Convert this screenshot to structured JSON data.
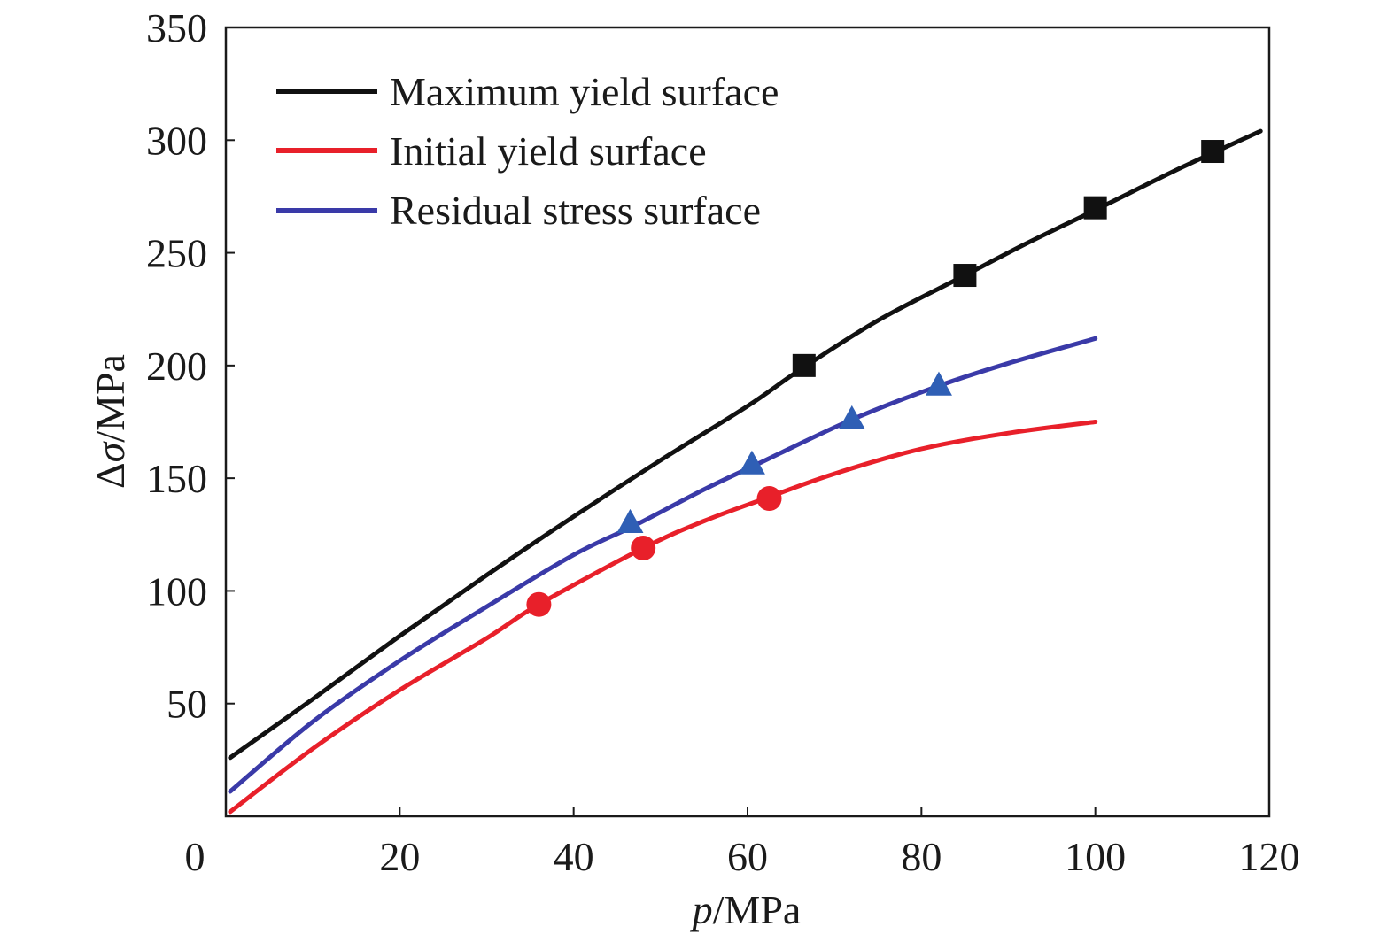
{
  "chart_data": {
    "type": "line",
    "title": "",
    "xlabel_italic": "p",
    "xlabel_rest": "/MPa",
    "ylabel_prefix": "Δ",
    "ylabel_italic": "σ",
    "ylabel_rest": "/MPa",
    "xlim": [
      0,
      120
    ],
    "ylim": [
      0,
      350
    ],
    "xticks": [
      0,
      20,
      40,
      60,
      80,
      100,
      120
    ],
    "yticks": [
      50,
      100,
      150,
      200,
      250,
      300,
      350
    ],
    "x_tick_labels": [
      "0",
      "20",
      "40",
      "60",
      "80",
      "100",
      "120"
    ],
    "y_tick_labels": [
      "50",
      "100",
      "150",
      "200",
      "250",
      "300",
      "350"
    ],
    "grid": false,
    "legend_position": "top-left",
    "series": [
      {
        "name": "Maximum yield surface",
        "color": "#111111",
        "marker": "square",
        "curve": [
          [
            0.5,
            26
          ],
          [
            10,
            52
          ],
          [
            20,
            80
          ],
          [
            30,
            107
          ],
          [
            40,
            133
          ],
          [
            50,
            158
          ],
          [
            60,
            182
          ],
          [
            66,
            198
          ],
          [
            75,
            220
          ],
          [
            85,
            240
          ],
          [
            92,
            254
          ],
          [
            100,
            269
          ],
          [
            110,
            288
          ],
          [
            119,
            304
          ]
        ],
        "markers": [
          [
            66.5,
            200
          ],
          [
            85,
            240
          ],
          [
            100,
            270
          ],
          [
            113.5,
            295
          ]
        ]
      },
      {
        "name": "Initial yield surface",
        "color": "#e8202a",
        "marker": "circle",
        "curve": [
          [
            0.5,
            2
          ],
          [
            10,
            30
          ],
          [
            20,
            56
          ],
          [
            30,
            79
          ],
          [
            36,
            94
          ],
          [
            48,
            119
          ],
          [
            55,
            131
          ],
          [
            62,
            141
          ],
          [
            70,
            152
          ],
          [
            80,
            163
          ],
          [
            90,
            170
          ],
          [
            100,
            175
          ]
        ],
        "markers": [
          [
            36,
            94
          ],
          [
            48,
            119
          ],
          [
            62.5,
            141
          ]
        ]
      },
      {
        "name": "Residual stress surface",
        "color": "#3a3aa8",
        "marker": "triangle",
        "curve": [
          [
            0.5,
            11
          ],
          [
            10,
            42
          ],
          [
            20,
            69
          ],
          [
            30,
            93
          ],
          [
            40,
            116
          ],
          [
            47,
            129
          ],
          [
            55,
            145
          ],
          [
            61,
            156
          ],
          [
            72,
            176
          ],
          [
            82,
            191
          ],
          [
            90,
            201
          ],
          [
            100,
            212
          ]
        ],
        "markers": [
          [
            46.5,
            130
          ],
          [
            60.5,
            156
          ],
          [
            72,
            176
          ],
          [
            82,
            191
          ]
        ]
      }
    ],
    "marker_colors": {
      "square": "#111111",
      "circle": "#e8202a",
      "triangle": "#2f5fb5"
    }
  }
}
